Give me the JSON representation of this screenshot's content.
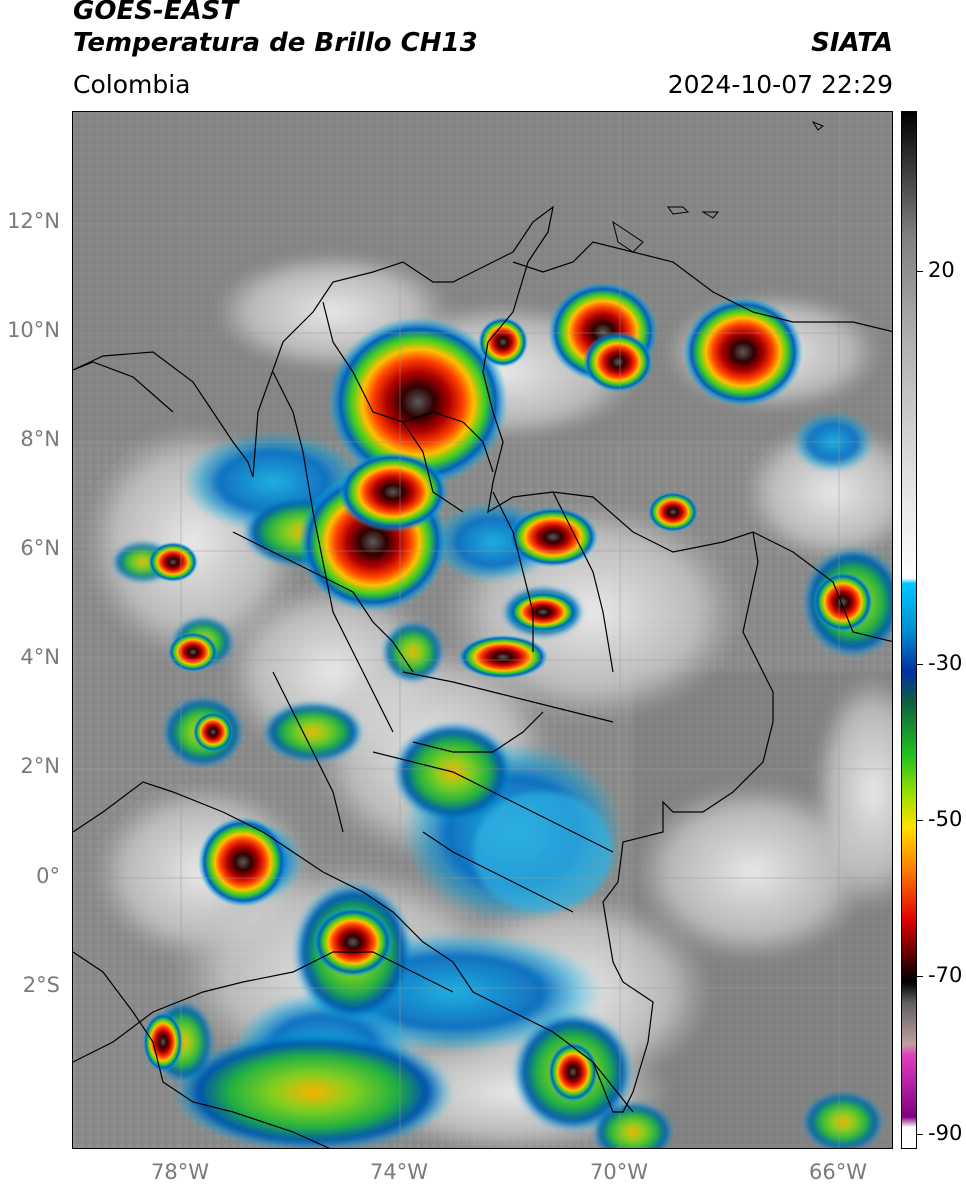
{
  "header": {
    "satellite": "GOES-EAST",
    "product": "Temperatura de Brillo CH13",
    "source": "SIATA",
    "region": "Colombia",
    "datetime": "2024-10-07 22:29"
  },
  "map": {
    "lat_labels": [
      "12°N",
      "10°N",
      "8°N",
      "6°N",
      "4°N",
      "2°N",
      "0°",
      "2°S"
    ],
    "lon_labels": [
      "78°W",
      "74°W",
      "70°W",
      "66°W"
    ]
  },
  "colorbar": {
    "ticks": [
      "20",
      "-30",
      "-50",
      "-70",
      "-90"
    ],
    "colors": {
      "warm_gray_top": "#000000",
      "mid_gray": "#b0b0b0",
      "light": "#ffffff",
      "cyan": "#00c8ff",
      "blue": "#0030a0",
      "green": "#20c020",
      "yellow": "#ffe000",
      "red": "#e00000",
      "dark": "#200000",
      "magenta": "#e040c0",
      "purple": "#800080"
    }
  }
}
